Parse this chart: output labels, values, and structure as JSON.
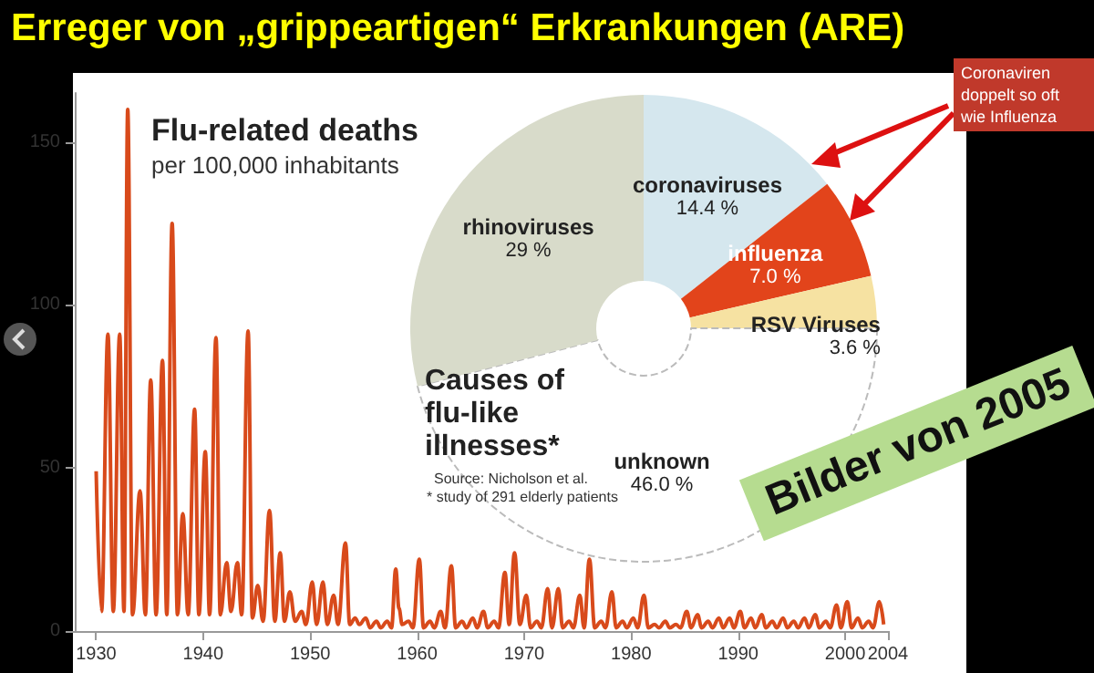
{
  "chart_data": [
    {
      "type": "line",
      "title": "Flu-related deaths",
      "subtitle": "per 100,000 inhabitants",
      "annotations": [
        "Erreger von „grippeartigen“ Erkrankungen (ARE)"
      ],
      "x": [
        1930,
        1930.5,
        1931.1,
        1931.6,
        1932.2,
        1932.6,
        1932.95,
        1933.4,
        1934.1,
        1934.6,
        1935.1,
        1935.6,
        1936.2,
        1936.6,
        1937.1,
        1937.6,
        1938.1,
        1938.6,
        1939.2,
        1939.6,
        1940.2,
        1940.6,
        1941.2,
        1941.6,
        1942.2,
        1942.6,
        1943.2,
        1943.6,
        1944.2,
        1944.6,
        1945.1,
        1945.6,
        1946.2,
        1946.7,
        1947.2,
        1947.6,
        1948.1,
        1948.6,
        1949.2,
        1949.6,
        1950.2,
        1950.6,
        1951.2,
        1951.6,
        1952.2,
        1952.6,
        1953.3,
        1953.7,
        1954.2,
        1954.6,
        1955.2,
        1955.6,
        1956.2,
        1956.6,
        1957.2,
        1957.6,
        1958.0,
        1958.3,
        1958.6,
        1959.2,
        1959.6,
        1960.2,
        1960.6,
        1961.2,
        1961.6,
        1962.2,
        1962.6,
        1963.2,
        1963.6,
        1964.2,
        1964.6,
        1965.2,
        1965.6,
        1966.2,
        1966.6,
        1967.2,
        1967.6,
        1968.2,
        1968.6,
        1969.1,
        1969.6,
        1970.2,
        1970.6,
        1971.2,
        1971.6,
        1972.2,
        1972.6,
        1973.2,
        1973.6,
        1974.2,
        1974.6,
        1975.2,
        1975.6,
        1976.1,
        1976.6,
        1977.2,
        1977.6,
        1978.2,
        1978.6,
        1979.2,
        1979.6,
        1980.2,
        1980.6,
        1981.2,
        1981.6,
        1982.2,
        1982.6,
        1983.2,
        1983.6,
        1984.2,
        1984.6,
        1985.2,
        1985.6,
        1986.2,
        1986.6,
        1987.2,
        1987.6,
        1988.2,
        1988.6,
        1989.2,
        1989.6,
        1990.2,
        1990.6,
        1991.2,
        1991.6,
        1992.2,
        1992.6,
        1993.2,
        1993.6,
        1994.2,
        1994.6,
        1995.2,
        1995.6,
        1996.2,
        1996.6,
        1997.2,
        1997.6,
        1998.2,
        1998.6,
        1999.2,
        1999.6,
        2000.2,
        2000.6,
        2001.2,
        2001.6,
        2002.2,
        2002.6,
        2003.2,
        2003.6
      ],
      "series": [
        {
          "color": "#d84a1b",
          "values": [
            49,
            6,
            91,
            6,
            91,
            6,
            160,
            5,
            43,
            5,
            77,
            5,
            83,
            5,
            125,
            5,
            36,
            5,
            68,
            5,
            55,
            5,
            90,
            5,
            21,
            6,
            21,
            5,
            92,
            4,
            14,
            3,
            37,
            3,
            24,
            3,
            12,
            3,
            6,
            2,
            15,
            2,
            15,
            2,
            11,
            2,
            27,
            2,
            4,
            2,
            4,
            1,
            3,
            1,
            3,
            1,
            19,
            7,
            2,
            3,
            1,
            22,
            1,
            3,
            1,
            6,
            1,
            20,
            1,
            3,
            1,
            4,
            1,
            6,
            1,
            3,
            1,
            18,
            2,
            24,
            2,
            11,
            1,
            3,
            1,
            13,
            1,
            13,
            1,
            3,
            1,
            11,
            1,
            22,
            1,
            3,
            1,
            12,
            1,
            3,
            1,
            4,
            1,
            11,
            1,
            2,
            1,
            3,
            1,
            2,
            1,
            6,
            1,
            5,
            1,
            3,
            1,
            4,
            1,
            4,
            1,
            6,
            1,
            4,
            1,
            5,
            1,
            3,
            1,
            4,
            1,
            3,
            1,
            4,
            1,
            5,
            1,
            3,
            1,
            8,
            1,
            9,
            1,
            4,
            1,
            3,
            1,
            9,
            2
          ]
        }
      ],
      "xlim": [
        1928,
        2004
      ],
      "xticks": [
        1930,
        1940,
        1950,
        1960,
        1970,
        1980,
        1990,
        2000,
        2004
      ],
      "ylim": [
        0,
        165
      ],
      "yticks": [
        0,
        50,
        100,
        150
      ],
      "grid": false,
      "marker": "none",
      "line_style": "solid",
      "legend": false
    },
    {
      "type": "donut",
      "title": "Causes of flu-like illnesses*",
      "categories": [
        "coronaviruses",
        "influenza",
        "RSV Viruses",
        "unknown",
        "rhinoviruses"
      ],
      "values": [
        14.4,
        7.0,
        3.6,
        46.0,
        29
      ],
      "value_labels": [
        "14.4 %",
        "7.0 %",
        "3.6 %",
        "46.0 %",
        "29 %"
      ],
      "colors": [
        "#d5e7ee",
        "#e2441b",
        "#f6e2a2",
        "#ffffff",
        "#d8dbca"
      ],
      "annotations": [
        "Source: Nicholson et al.",
        "* study of 291 elderly patients",
        "Coronaviren doppelt so oft wie Influenza",
        "Bilder von 2005"
      ],
      "legend": false
    }
  ]
}
